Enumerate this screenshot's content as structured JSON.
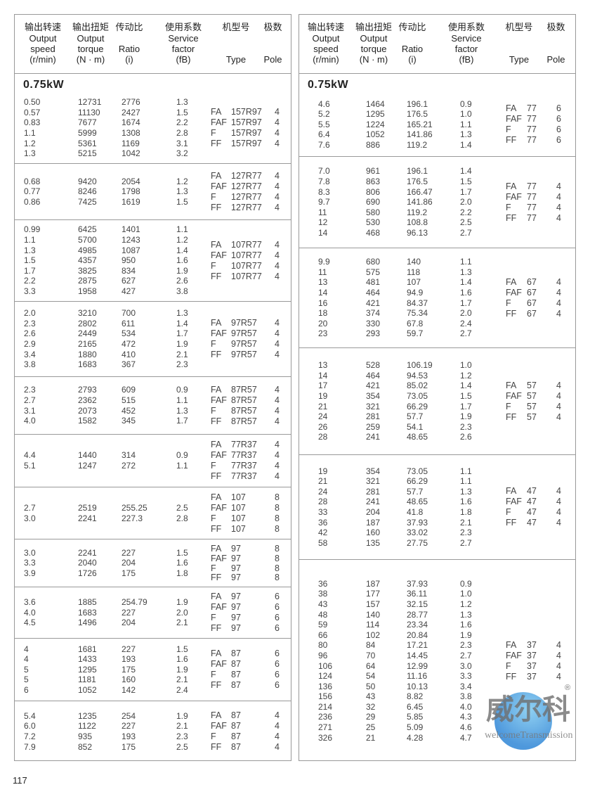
{
  "header": {
    "columns": [
      {
        "cn": "输出转速",
        "en": [
          "Output",
          "speed",
          "(r/min)"
        ]
      },
      {
        "cn": "输出扭矩",
        "en": [
          "Output",
          "torque",
          "(N · m)"
        ]
      },
      {
        "cn": "传动比",
        "en": [
          "",
          "Ratio",
          "(i)"
        ]
      },
      {
        "cn": "使用系数",
        "en": [
          "Service",
          "factor",
          "(fB)"
        ]
      },
      {
        "cn": "机型号",
        "en": [
          "",
          "",
          "Type"
        ]
      },
      {
        "cn": "极数",
        "en": [
          "",
          "",
          "Pole"
        ]
      }
    ]
  },
  "power_label": "0.75kW",
  "page_number": "117",
  "watermark": {
    "cn": "威尔科",
    "en": "welcomeTransmission",
    "reg": "®"
  },
  "left_sections": [
    {
      "rows": [
        [
          "0.50",
          "12731",
          "2776",
          "1.3"
        ],
        [
          "0.57",
          "11130",
          "2427",
          "1.5"
        ],
        [
          "0.83",
          "7677",
          "1674",
          "2.2"
        ],
        [
          "1.1",
          "5999",
          "1308",
          "2.8"
        ],
        [
          "1.2",
          "5361",
          "1169",
          "3.1"
        ],
        [
          "1.3",
          "5215",
          "1042",
          "3.2"
        ]
      ],
      "types": [
        [
          "FA",
          "157R97",
          "4"
        ],
        [
          "FAF",
          "157R97",
          "4"
        ],
        [
          "F",
          "157R97",
          "4"
        ],
        [
          "FF",
          "157R97",
          "4"
        ]
      ]
    },
    {
      "rows": [
        [
          "0.68",
          "9420",
          "2054",
          "1.2"
        ],
        [
          "0.77",
          "8246",
          "1798",
          "1.3"
        ],
        [
          "0.86",
          "7425",
          "1619",
          "1.5"
        ]
      ],
      "types": [
        [
          "FA",
          "127R77",
          "4"
        ],
        [
          "FAF",
          "127R77",
          "4"
        ],
        [
          "F",
          "127R77",
          "4"
        ],
        [
          "FF",
          "127R77",
          "4"
        ]
      ]
    },
    {
      "rows": [
        [
          "0.99",
          "6425",
          "1401",
          "1.1"
        ],
        [
          "1.1",
          "5700",
          "1243",
          "1.2"
        ],
        [
          "1.3",
          "4985",
          "1087",
          "1.4"
        ],
        [
          "1.5",
          "4357",
          "950",
          "1.6"
        ],
        [
          "1.7",
          "3825",
          "834",
          "1.9"
        ],
        [
          "2.2",
          "2875",
          "627",
          "2.6"
        ],
        [
          "3.3",
          "1958",
          "427",
          "3.8"
        ]
      ],
      "types": [
        [
          "FA",
          "107R77",
          "4"
        ],
        [
          "FAF",
          "107R77",
          "4"
        ],
        [
          "F",
          "107R77",
          "4"
        ],
        [
          "FF",
          "107R77",
          "4"
        ]
      ]
    },
    {
      "rows": [
        [
          "2.0",
          "3210",
          "700",
          "1.3"
        ],
        [
          "2.3",
          "2802",
          "611",
          "1.4"
        ],
        [
          "2.6",
          "2449",
          "534",
          "1.7"
        ],
        [
          "2.9",
          "2165",
          "472",
          "1.9"
        ],
        [
          "3.4",
          "1880",
          "410",
          "2.1"
        ],
        [
          "3.8",
          "1683",
          "367",
          "2.3"
        ]
      ],
      "types": [
        [
          "FA",
          "97R57",
          "4"
        ],
        [
          "FAF",
          "97R57",
          "4"
        ],
        [
          "F",
          "97R57",
          "4"
        ],
        [
          "FF",
          "97R57",
          "4"
        ]
      ]
    },
    {
      "rows": [
        [
          "2.3",
          "2793",
          "609",
          "0.9"
        ],
        [
          "2.7",
          "2362",
          "515",
          "1.1"
        ],
        [
          "3.1",
          "2073",
          "452",
          "1.3"
        ],
        [
          "4.0",
          "1582",
          "345",
          "1.7"
        ]
      ],
      "types": [
        [
          "FA",
          "87R57",
          "4"
        ],
        [
          "FAF",
          "87R57",
          "4"
        ],
        [
          "F",
          "87R57",
          "4"
        ],
        [
          "FF",
          "87R57",
          "4"
        ]
      ]
    },
    {
      "rows": [
        [
          "4.4",
          "1440",
          "314",
          "0.9"
        ],
        [
          "5.1",
          "1247",
          "272",
          "1.1"
        ]
      ],
      "types": [
        [
          "FA",
          "77R37",
          "4"
        ],
        [
          "FAF",
          "77R37",
          "4"
        ],
        [
          "F",
          "77R37",
          "4"
        ],
        [
          "FF",
          "77R37",
          "4"
        ]
      ]
    },
    {
      "rows": [
        [
          "2.7",
          "2519",
          "255.25",
          "2.5"
        ],
        [
          "3.0",
          "2241",
          "227.3",
          "2.8"
        ]
      ],
      "types": [
        [
          "FA",
          "107",
          "8"
        ],
        [
          "FAF",
          "107",
          "8"
        ],
        [
          "F",
          "107",
          "8"
        ],
        [
          "FF",
          "107",
          "8"
        ]
      ]
    },
    {
      "rows": [
        [
          "3.0",
          "2241",
          "227",
          "1.5"
        ],
        [
          "3.3",
          "2040",
          "204",
          "1.6"
        ],
        [
          "3.9",
          "1726",
          "175",
          "1.8"
        ]
      ],
      "types": [
        [
          "FA",
          "97",
          "8"
        ],
        [
          "FAF",
          "97",
          "8"
        ],
        [
          "F",
          "97",
          "8"
        ],
        [
          "FF",
          "97",
          "8"
        ]
      ]
    },
    {
      "rows": [
        [
          "3.6",
          "1885",
          "254.79",
          "1.9"
        ],
        [
          "4.0",
          "1683",
          "227",
          "2.0"
        ],
        [
          "4.5",
          "1496",
          "204",
          "2.1"
        ]
      ],
      "types": [
        [
          "FA",
          "97",
          "6"
        ],
        [
          "FAF",
          "97",
          "6"
        ],
        [
          "F",
          "97",
          "6"
        ],
        [
          "FF",
          "97",
          "6"
        ]
      ]
    },
    {
      "rows": [
        [
          "4",
          "1681",
          "227",
          "1.5"
        ],
        [
          "4",
          "1433",
          "193",
          "1.6"
        ],
        [
          "5",
          "1295",
          "175",
          "1.9"
        ],
        [
          "5",
          "1181",
          "160",
          "2.1"
        ],
        [
          "6",
          "1052",
          "142",
          "2.4"
        ]
      ],
      "types": [
        [
          "FA",
          "87",
          "6"
        ],
        [
          "FAF",
          "87",
          "6"
        ],
        [
          "F",
          "87",
          "6"
        ],
        [
          "FF",
          "87",
          "6"
        ]
      ]
    },
    {
      "rows": [
        [
          "5.4",
          "1235",
          "254",
          "1.9"
        ],
        [
          "6.0",
          "1122",
          "227",
          "2.1"
        ],
        [
          "7.2",
          "935",
          "193",
          "2.3"
        ],
        [
          "7.9",
          "852",
          "175",
          "2.5"
        ]
      ],
      "types": [
        [
          "FA",
          "87",
          "4"
        ],
        [
          "FAF",
          "87",
          "4"
        ],
        [
          "F",
          "87",
          "4"
        ],
        [
          "FF",
          "87",
          "4"
        ]
      ]
    }
  ],
  "right_sections": [
    {
      "rows": [
        [
          "4.6",
          "1464",
          "196.1",
          "0.9"
        ],
        [
          "5.2",
          "1295",
          "176.5",
          "1.0"
        ],
        [
          "5.5",
          "1224",
          "165.21",
          "1.1"
        ],
        [
          "6.4",
          "1052",
          "141.86",
          "1.3"
        ],
        [
          "7.6",
          "886",
          "119.2",
          "1.4"
        ]
      ],
      "types": [
        [
          "FA",
          "77",
          "6"
        ],
        [
          "FAF",
          "77",
          "6"
        ],
        [
          "F",
          "77",
          "6"
        ],
        [
          "FF",
          "77",
          "6"
        ]
      ]
    },
    {
      "rows": [
        [
          "7.0",
          "961",
          "196.1",
          "1.4"
        ],
        [
          "7.8",
          "863",
          "176.5",
          "1.5"
        ],
        [
          "8.3",
          "806",
          "166.47",
          "1.7"
        ],
        [
          "9.7",
          "690",
          "141.86",
          "2.0"
        ],
        [
          "11",
          "580",
          "119.2",
          "2.2"
        ],
        [
          "12",
          "530",
          "108.8",
          "2.5"
        ],
        [
          "14",
          "468",
          "96.13",
          "2.7"
        ]
      ],
      "types": [
        [
          "FA",
          "77",
          "4"
        ],
        [
          "FAF",
          "77",
          "4"
        ],
        [
          "F",
          "77",
          "4"
        ],
        [
          "FF",
          "77",
          "4"
        ]
      ]
    },
    {
      "rows": [
        [
          "9.9",
          "680",
          "140",
          "1.1"
        ],
        [
          "11",
          "575",
          "118",
          "1.3"
        ],
        [
          "13",
          "481",
          "107",
          "1.4"
        ],
        [
          "14",
          "464",
          "94.9",
          "1.6"
        ],
        [
          "16",
          "421",
          "84.37",
          "1.7"
        ],
        [
          "18",
          "374",
          "75.34",
          "2.0"
        ],
        [
          "20",
          "330",
          "67.8",
          "2.4"
        ],
        [
          "23",
          "293",
          "59.7",
          "2.7"
        ]
      ],
      "types": [
        [
          "FA",
          "67",
          "4"
        ],
        [
          "FAF",
          "67",
          "4"
        ],
        [
          "F",
          "67",
          "4"
        ],
        [
          "FF",
          "67",
          "4"
        ]
      ]
    },
    {
      "rows": [
        [
          "13",
          "528",
          "106.19",
          "1.0"
        ],
        [
          "14",
          "464",
          "94.53",
          "1.2"
        ],
        [
          "17",
          "421",
          "85.02",
          "1.4"
        ],
        [
          "19",
          "354",
          "73.05",
          "1.5"
        ],
        [
          "21",
          "321",
          "66.29",
          "1.7"
        ],
        [
          "24",
          "281",
          "57.7",
          "1.9"
        ],
        [
          "26",
          "259",
          "54.1",
          "2.3"
        ],
        [
          "28",
          "241",
          "48.65",
          "2.6"
        ]
      ],
      "types": [
        [
          "FA",
          "57",
          "4"
        ],
        [
          "FAF",
          "57",
          "4"
        ],
        [
          "F",
          "57",
          "4"
        ],
        [
          "FF",
          "57",
          "4"
        ]
      ]
    },
    {
      "rows": [
        [
          "19",
          "354",
          "73.05",
          "1.1"
        ],
        [
          "21",
          "321",
          "66.29",
          "1.1"
        ],
        [
          "24",
          "281",
          "57.7",
          "1.3"
        ],
        [
          "28",
          "241",
          "48.65",
          "1.6"
        ],
        [
          "33",
          "204",
          "41.8",
          "1.8"
        ],
        [
          "36",
          "187",
          "37.93",
          "2.1"
        ],
        [
          "42",
          "160",
          "33.02",
          "2.3"
        ],
        [
          "58",
          "135",
          "27.75",
          "2.7"
        ]
      ],
      "types": [
        [
          "FA",
          "47",
          "4"
        ],
        [
          "FAF",
          "47",
          "4"
        ],
        [
          "F",
          "47",
          "4"
        ],
        [
          "FF",
          "47",
          "4"
        ]
      ]
    },
    {
      "rows": [
        [
          "36",
          "187",
          "37.93",
          "0.9"
        ],
        [
          "38",
          "177",
          "36.11",
          "1.0"
        ],
        [
          "43",
          "157",
          "32.15",
          "1.2"
        ],
        [
          "48",
          "140",
          "28.77",
          "1.3"
        ],
        [
          "59",
          "114",
          "23.34",
          "1.6"
        ],
        [
          "66",
          "102",
          "20.84",
          "1.9"
        ],
        [
          "80",
          "84",
          "17.21",
          "2.3"
        ],
        [
          "96",
          "70",
          "14.45",
          "2.7"
        ],
        [
          "106",
          "64",
          "12.99",
          "3.0"
        ],
        [
          "124",
          "54",
          "11.16",
          "3.3"
        ],
        [
          "136",
          "50",
          "10.13",
          "3.4"
        ],
        [
          "156",
          "43",
          "8.82",
          "3.8"
        ],
        [
          "214",
          "32",
          "6.45",
          "4.0"
        ],
        [
          "236",
          "29",
          "5.85",
          "4.3"
        ],
        [
          "271",
          "25",
          "5.09",
          "4.6"
        ],
        [
          "326",
          "21",
          "4.28",
          "4.7"
        ]
      ],
      "types": [
        [
          "FA",
          "37",
          "4"
        ],
        [
          "FAF",
          "37",
          "4"
        ],
        [
          "F",
          "37",
          "4"
        ],
        [
          "FF",
          "37",
          "4"
        ]
      ]
    }
  ]
}
